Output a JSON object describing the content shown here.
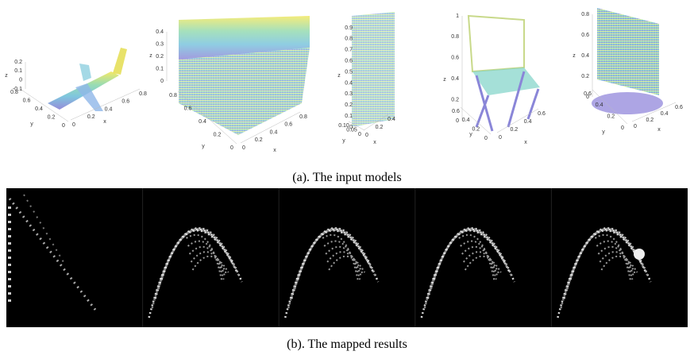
{
  "figure": {
    "input_plots": [
      {
        "z_label": "z",
        "y_label": "y",
        "x_label": "x",
        "z_ticks": [
          "0.2",
          "0.1",
          "0",
          "-0.1"
        ],
        "y_ticks": [
          "0.8",
          "0.6",
          "0.4",
          "0.2",
          "0"
        ],
        "x_ticks": [
          "0",
          "0.2",
          "0.4",
          "0.6",
          "0.8"
        ]
      },
      {
        "z_label": "z",
        "y_label": "y",
        "x_label": "x",
        "z_ticks": [
          "0.4",
          "0.3",
          "0.2",
          "0.1",
          "0"
        ],
        "y_ticks": [
          "0.8",
          "0.6",
          "0.4",
          "0.2",
          "0"
        ],
        "x_ticks": [
          "0",
          "0.2",
          "0.4",
          "0.6",
          "0.8"
        ]
      },
      {
        "z_label": "z",
        "y_label": "y",
        "x_label": "x",
        "z_ticks": [
          "0.9",
          "0.8",
          "0.7",
          "0.6",
          "0.5",
          "0.4",
          "0.3",
          "0.2",
          "0.1",
          "0"
        ],
        "y_ticks": [
          "0.10",
          "0.05",
          "0"
        ],
        "x_ticks": [
          "0",
          "0.2",
          "0.4"
        ]
      },
      {
        "z_label": "z",
        "y_label": "y",
        "x_label": "x",
        "z_ticks": [
          "1",
          "0.8",
          "0.6",
          "0.4",
          "0.2",
          "0"
        ],
        "y_ticks": [
          "0.6",
          "0.4",
          "0.2",
          "0"
        ],
        "x_ticks": [
          "0",
          "0.2",
          "0.4",
          "0.6"
        ]
      },
      {
        "z_label": "z",
        "y_label": "y",
        "x_label": "x",
        "z_ticks": [
          "0.8",
          "0.6",
          "0.4",
          "0.2",
          "0"
        ],
        "y_ticks": [
          "0.6",
          "0.4",
          "0.2",
          "0"
        ],
        "x_ticks": [
          "0",
          "0.2",
          "0.4",
          "0.6"
        ]
      }
    ],
    "caption_a": "(a). The input models",
    "caption_b": "(b). The mapped results"
  }
}
